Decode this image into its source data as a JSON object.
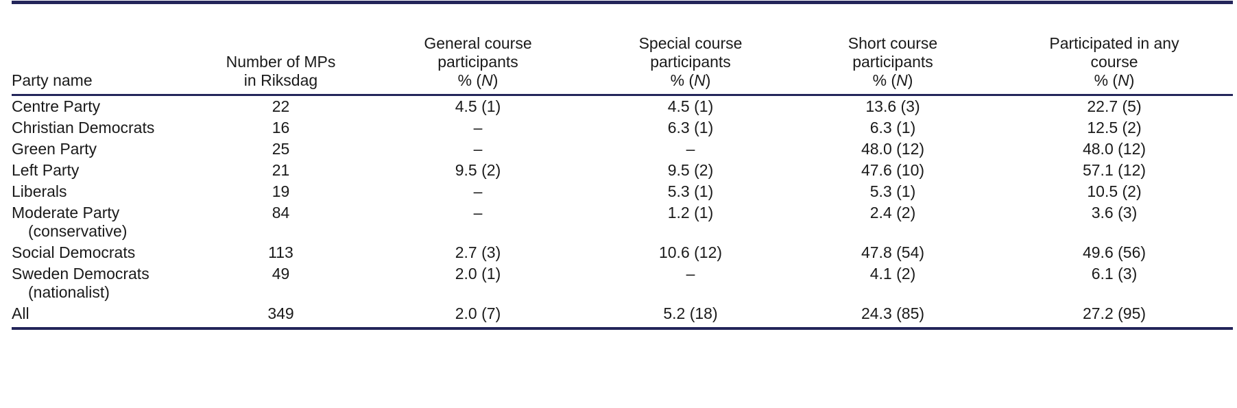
{
  "table": {
    "headers": [
      {
        "lines": [
          "Party name"
        ]
      },
      {
        "lines": [
          "Number of MPs",
          "in Riksdag"
        ]
      },
      {
        "lines": [
          "General course",
          "participants",
          "% (N)"
        ]
      },
      {
        "lines": [
          "Special course",
          "participants",
          "% (N)"
        ]
      },
      {
        "lines": [
          "Short course",
          "participants",
          "% (N)"
        ]
      },
      {
        "lines": [
          "Participated in any",
          "course",
          "% (N)"
        ]
      }
    ],
    "header_text": {
      "party": "Party name",
      "mps_1": "Number of MPs",
      "mps_2": "in Riksdag",
      "general_1": "General course",
      "general_2": "participants",
      "special_1": "Special course",
      "special_2": "participants",
      "short_1": "Short course",
      "short_2": "participants",
      "any_1": "Participated in any",
      "any_2": "course",
      "pct": "% (",
      "n": "N",
      "close": ")"
    },
    "rows": [
      {
        "party": "Centre Party",
        "party_sub": "",
        "mps": "22",
        "general": "4.5 (1)",
        "special": "4.5 (1)",
        "short": "13.6 (3)",
        "any": "22.7 (5)"
      },
      {
        "party": "Christian Democrats",
        "party_sub": "",
        "mps": "16",
        "general": "–",
        "special": "6.3 (1)",
        "short": "6.3 (1)",
        "any": "12.5 (2)"
      },
      {
        "party": "Green Party",
        "party_sub": "",
        "mps": "25",
        "general": "–",
        "special": "–",
        "short": "48.0 (12)",
        "any": "48.0 (12)"
      },
      {
        "party": "Left Party",
        "party_sub": "",
        "mps": "21",
        "general": "9.5 (2)",
        "special": "9.5 (2)",
        "short": "47.6 (10)",
        "any": "57.1 (12)"
      },
      {
        "party": "Liberals",
        "party_sub": "",
        "mps": "19",
        "general": "–",
        "special": "5.3 (1)",
        "short": "5.3 (1)",
        "any": "10.5 (2)"
      },
      {
        "party": "Moderate Party",
        "party_sub": "(conservative)",
        "mps": "84",
        "general": "–",
        "special": "1.2 (1)",
        "short": "2.4 (2)",
        "any": "3.6 (3)"
      },
      {
        "party": "Social Democrats",
        "party_sub": "",
        "mps": "113",
        "general": "2.7 (3)",
        "special": "10.6 (12)",
        "short": "47.8 (54)",
        "any": "49.6 (56)"
      },
      {
        "party": "Sweden Democrats",
        "party_sub": "(nationalist)",
        "mps": "49",
        "general": "2.0 (1)",
        "special": "–",
        "short": "4.1 (2)",
        "any": "6.1 (3)"
      },
      {
        "party": "All",
        "party_sub": "",
        "mps": "349",
        "general": "2.0 (7)",
        "special": "5.2 (18)",
        "short": "24.3 (85)",
        "any": "27.2 (95)"
      }
    ]
  },
  "colors": {
    "rule": "#23255a",
    "text": "#1a1a1a",
    "background": "#ffffff"
  }
}
